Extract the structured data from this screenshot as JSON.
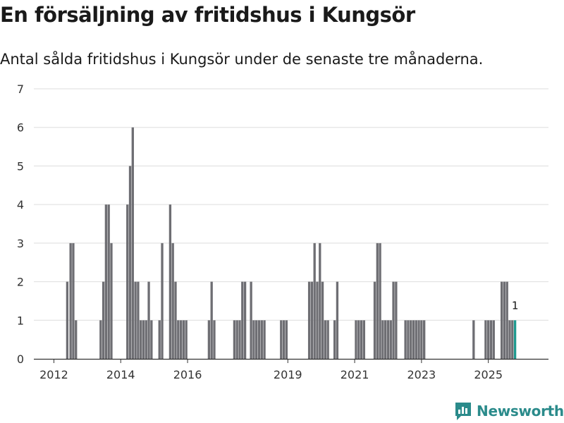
{
  "title": "En försäljning av fritidshus i Kungsör",
  "subtitle": "Antal sålda fritidshus i Kungsör under de senaste tre månaderna.",
  "brand": "Newsworthy",
  "colors": {
    "bar": "#6e6e73",
    "highlight": "#1f9a8f",
    "grid": "#dddddd",
    "axis": "#333333",
    "brand": "#2b8b8b"
  },
  "chart_data": {
    "type": "bar",
    "title": "En försäljning av fritidshus i Kungsör",
    "xlabel": "",
    "ylabel": "",
    "ylim": [
      0,
      7
    ],
    "yticks": [
      0,
      1,
      2,
      3,
      4,
      5,
      6,
      7
    ],
    "xlim": [
      2011.4,
      2026.8
    ],
    "xticks": [
      {
        "label": "2012",
        "value": 2012.0
      },
      {
        "label": "2014",
        "value": 2014.0
      },
      {
        "label": "2016",
        "value": 2016.0
      },
      {
        "label": "2019",
        "value": 2019.0
      },
      {
        "label": "2021",
        "value": 2021.0
      },
      {
        "label": "2023",
        "value": 2023.0
      },
      {
        "label": "2025",
        "value": 2025.0
      }
    ],
    "bar_width_years": 0.07,
    "x": [
      2012.4,
      2012.5,
      2012.58,
      2012.66,
      2013.4,
      2013.48,
      2013.56,
      2013.64,
      2013.72,
      2014.2,
      2014.28,
      2014.36,
      2014.44,
      2014.52,
      2014.6,
      2014.68,
      2014.76,
      2014.84,
      2014.92,
      2015.16,
      2015.24,
      2015.48,
      2015.56,
      2015.64,
      2015.72,
      2015.8,
      2015.88,
      2015.96,
      2016.64,
      2016.72,
      2016.8,
      2017.4,
      2017.48,
      2017.56,
      2017.64,
      2017.72,
      2017.9,
      2017.98,
      2018.06,
      2018.14,
      2018.22,
      2018.3,
      2018.8,
      2018.88,
      2018.96,
      2019.64,
      2019.72,
      2019.8,
      2019.88,
      2019.96,
      2020.04,
      2020.12,
      2020.2,
      2020.4,
      2020.48,
      2021.04,
      2021.12,
      2021.2,
      2021.28,
      2021.6,
      2021.68,
      2021.76,
      2021.84,
      2021.92,
      2022.0,
      2022.08,
      2022.16,
      2022.24,
      2022.52,
      2022.6,
      2022.68,
      2022.76,
      2022.84,
      2022.92,
      2023.0,
      2023.08,
      2024.56,
      2024.92,
      2025.0,
      2025.08,
      2025.16,
      2025.4,
      2025.48,
      2025.56,
      2025.64,
      2025.72,
      2025.8
    ],
    "values": [
      2,
      3,
      3,
      1,
      1,
      2,
      4,
      4,
      3,
      4,
      5,
      6,
      2,
      2,
      1,
      1,
      1,
      2,
      1,
      1,
      3,
      4,
      3,
      2,
      1,
      1,
      1,
      1,
      1,
      2,
      1,
      1,
      1,
      1,
      2,
      2,
      2,
      1,
      1,
      1,
      1,
      1,
      1,
      1,
      1,
      2,
      2,
      3,
      2,
      3,
      2,
      1,
      1,
      1,
      2,
      1,
      1,
      1,
      1,
      2,
      3,
      3,
      1,
      1,
      1,
      1,
      2,
      2,
      1,
      1,
      1,
      1,
      1,
      1,
      1,
      1,
      1,
      1,
      1,
      1,
      1,
      2,
      2,
      2,
      1,
      1,
      1
    ],
    "highlight": {
      "x": 2025.8,
      "value": 1,
      "label": "1",
      "color": "#1f9a8f"
    }
  }
}
